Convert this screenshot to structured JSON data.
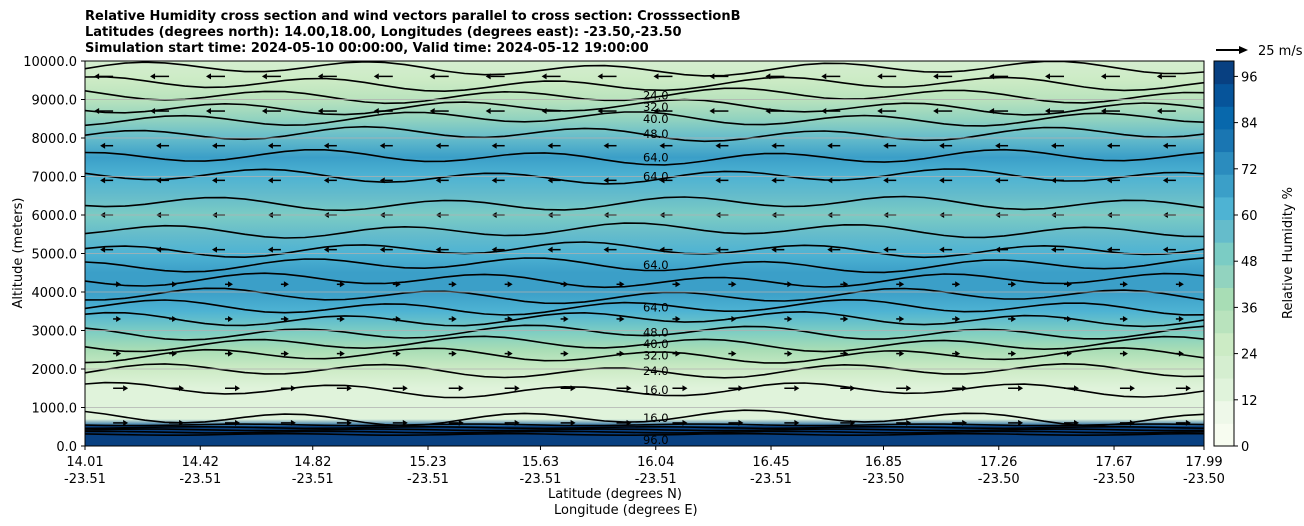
{
  "chart_data": {
    "type": "contourf",
    "title_lines": [
      "Relative Humidity cross section and wind vectors parallel to cross section: CrosssectionB",
      "Latitudes (degrees north): 14.00,18.00, Longitudes (degrees east): -23.50,-23.50",
      "Simulation start time: 2024-05-10 00:00:00, Valid time: 2024-05-12 19:00:00"
    ],
    "ylabel": "Altitude (meters)",
    "ylim": [
      0,
      10000
    ],
    "y_ticks": [
      "0.0",
      "1000.0",
      "2000.0",
      "3000.0",
      "4000.0",
      "5000.0",
      "6000.0",
      "7000.0",
      "8000.0",
      "9000.0",
      "10000.0"
    ],
    "x_tick_lat": [
      "14.01",
      "14.42",
      "14.82",
      "15.23",
      "15.63",
      "16.04",
      "16.45",
      "16.85",
      "17.26",
      "17.67",
      "17.99"
    ],
    "x_tick_lon": [
      "-23.51",
      "-23.51",
      "-23.51",
      "-23.51",
      "-23.51",
      "-23.51",
      "-23.51",
      "-23.50",
      "-23.50",
      "-23.50",
      "-23.50"
    ],
    "xlabel_lat": "Latitude (degrees N)",
    "xlabel_lon": "Longitude (degrees E)",
    "colorbar": {
      "label": "Relative Humidity %",
      "ticks": [
        "0",
        "12",
        "24",
        "36",
        "48",
        "60",
        "72",
        "84",
        "96"
      ],
      "range": [
        0,
        100
      ],
      "colors": [
        "#f7fcf0",
        "#eef8e9",
        "#e0f3db",
        "#d5eed0",
        "#ccebc5",
        "#b9e3bd",
        "#a8ddb5",
        "#92d3bf",
        "#7bccc4",
        "#65bccb",
        "#4eb3d3",
        "#3b9fc8",
        "#2b8cbe",
        "#1a76b2",
        "#0868ac",
        "#06549a",
        "#084081"
      ]
    },
    "quiver_key": "25 m/s",
    "contour_levels": [
      "16.0",
      "24.0",
      "32.0",
      "40.0",
      "48.0",
      "56.0",
      "64.0",
      "72.0",
      "80.0",
      "96.0"
    ],
    "rh_profile": [
      {
        "alt": 0,
        "rh": 92
      },
      {
        "alt": 500,
        "rh": 90
      },
      {
        "alt": 700,
        "rh": 14
      },
      {
        "alt": 1000,
        "rh": 12
      },
      {
        "alt": 1500,
        "rh": 16
      },
      {
        "alt": 2000,
        "rh": 24
      },
      {
        "alt": 2500,
        "rh": 36
      },
      {
        "alt": 3000,
        "rh": 48
      },
      {
        "alt": 3500,
        "rh": 62
      },
      {
        "alt": 4000,
        "rh": 70
      },
      {
        "alt": 4500,
        "rh": 66
      },
      {
        "alt": 5000,
        "rh": 60
      },
      {
        "alt": 5500,
        "rh": 56
      },
      {
        "alt": 6000,
        "rh": 52
      },
      {
        "alt": 6500,
        "rh": 56
      },
      {
        "alt": 7000,
        "rh": 62
      },
      {
        "alt": 7500,
        "rh": 66
      },
      {
        "alt": 8000,
        "rh": 58
      },
      {
        "alt": 8500,
        "rh": 44
      },
      {
        "alt": 9000,
        "rh": 30
      },
      {
        "alt": 9500,
        "rh": 24
      },
      {
        "alt": 10000,
        "rh": 20
      }
    ],
    "contour_labels": [
      {
        "text": "24.0",
        "lat": 16.04,
        "alt": 9100
      },
      {
        "text": "32.0",
        "lat": 16.04,
        "alt": 8800
      },
      {
        "text": "40.0",
        "lat": 16.04,
        "alt": 8500
      },
      {
        "text": "48.0",
        "lat": 16.04,
        "alt": 8100
      },
      {
        "text": "64.0",
        "lat": 16.04,
        "alt": 7500
      },
      {
        "text": "64.0",
        "lat": 16.04,
        "alt": 7000
      },
      {
        "text": "64.0",
        "lat": 16.04,
        "alt": 4700
      },
      {
        "text": "64.0",
        "lat": 16.04,
        "alt": 3600
      },
      {
        "text": "48.0",
        "lat": 16.04,
        "alt": 2950
      },
      {
        "text": "40.0",
        "lat": 16.04,
        "alt": 2650
      },
      {
        "text": "32.0",
        "lat": 16.04,
        "alt": 2350
      },
      {
        "text": "24.0",
        "lat": 16.04,
        "alt": 1950
      },
      {
        "text": "16.0",
        "lat": 16.04,
        "alt": 1450
      },
      {
        "text": "16.0",
        "lat": 16.04,
        "alt": 730
      },
      {
        "text": "96.0",
        "lat": 16.04,
        "alt": 150
      }
    ]
  }
}
